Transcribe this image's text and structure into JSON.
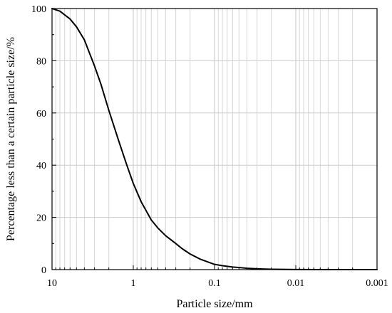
{
  "chart_data": {
    "type": "line",
    "title": "",
    "xlabel": "Particle size/mm",
    "ylabel": "Percentage less than a certain particle size/%",
    "x_scale": "log",
    "x_reversed": true,
    "xlim": [
      10,
      0.001
    ],
    "ylim": [
      0,
      100
    ],
    "grid": true,
    "x_ticks": [
      10,
      1,
      0.1,
      0.01,
      0.001
    ],
    "x_tick_labels": [
      "10",
      "1",
      "0.1",
      "0.01",
      "0.001"
    ],
    "y_ticks": [
      0,
      20,
      40,
      60,
      80,
      100
    ],
    "y_tick_labels": [
      "0",
      "20",
      "40",
      "60",
      "80",
      "100"
    ],
    "series": [
      {
        "color": "#000000",
        "x": [
          10,
          8,
          6,
          5,
          4,
          3,
          2.5,
          2,
          1.5,
          1.2,
          1,
          0.8,
          0.6,
          0.5,
          0.4,
          0.3,
          0.25,
          0.2,
          0.15,
          0.1,
          0.08,
          0.06,
          0.05,
          0.04,
          0.03,
          0.02,
          0.01,
          0.005,
          0.001
        ],
        "y": [
          100,
          99,
          96,
          93,
          88,
          78,
          71,
          61,
          49,
          40,
          33,
          26,
          19,
          16,
          13,
          10,
          8,
          6,
          4,
          2,
          1.5,
          1,
          0.8,
          0.5,
          0.3,
          0.15,
          0.05,
          0,
          0
        ]
      }
    ]
  }
}
